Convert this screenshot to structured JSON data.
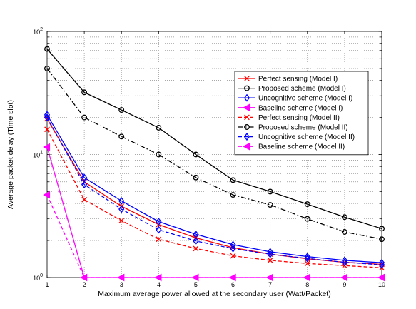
{
  "chart_data": {
    "type": "line",
    "title": "",
    "xlabel": "Maximum average power allowed at the secondary user (Watt/Packet)",
    "ylabel": "Average packet delay (Time slot)",
    "x_scale": "linear",
    "y_scale": "log",
    "xlim": [
      1,
      10
    ],
    "ylim": [
      1,
      100
    ],
    "grid": true,
    "legend_position": "upper-right",
    "x": [
      1,
      2,
      3,
      4,
      5,
      6,
      7,
      8,
      9,
      10
    ],
    "x_ticks": [
      "1",
      "2",
      "3",
      "4",
      "5",
      "6",
      "7",
      "8",
      "9",
      "10"
    ],
    "y_ticks": [
      {
        "value": 1,
        "base": "10",
        "exp": "0"
      },
      {
        "value": 10,
        "base": "10",
        "exp": "1"
      },
      {
        "value": 100,
        "base": "10",
        "exp": "2"
      }
    ],
    "series": [
      {
        "name": "Perfect sensing (Model I)",
        "color": "#ff0000",
        "line": "solid",
        "marker": "x",
        "values": [
          19.5,
          6.0,
          3.8,
          2.7,
          2.1,
          1.75,
          1.55,
          1.42,
          1.33,
          1.28
        ]
      },
      {
        "name": "Proposed scheme (Model I)",
        "color": "#000000",
        "line": "solid",
        "marker": "circle",
        "values": [
          72,
          32,
          23,
          16.5,
          10,
          6.2,
          5.0,
          3.95,
          3.1,
          2.5
        ]
      },
      {
        "name": "Uncognitive scheme (Model I)",
        "color": "#0000ff",
        "line": "solid",
        "marker": "diamond",
        "values": [
          21,
          6.5,
          4.2,
          2.85,
          2.25,
          1.85,
          1.62,
          1.48,
          1.38,
          1.32
        ]
      },
      {
        "name": "Baseline scheme (Model I)",
        "color": "#ff00ff",
        "line": "solid",
        "marker": "triangle-left",
        "values": [
          11.5,
          1.0,
          1.0,
          1.0,
          1.0,
          1.0,
          1.0,
          1.0,
          1.0,
          1.0
        ]
      },
      {
        "name": "Perfect sensing (Model II)",
        "color": "#ff0000",
        "line": "dashed",
        "marker": "x",
        "values": [
          16,
          4.3,
          2.9,
          2.05,
          1.72,
          1.5,
          1.38,
          1.3,
          1.25,
          1.2
        ]
      },
      {
        "name": "Proposed scheme (Model II)",
        "color": "#000000",
        "line": "dashdot",
        "marker": "circle",
        "values": [
          50,
          20,
          14,
          10,
          6.5,
          4.7,
          3.9,
          3.0,
          2.35,
          2.05
        ]
      },
      {
        "name": "Uncognitive scheme (Model II)",
        "color": "#0000ff",
        "line": "dashed",
        "marker": "diamond",
        "values": [
          20,
          5.7,
          3.6,
          2.45,
          1.98,
          1.72,
          1.55,
          1.43,
          1.33,
          1.27
        ]
      },
      {
        "name": "Baseline scheme (Model II)",
        "color": "#ff00ff",
        "line": "dashed",
        "marker": "triangle-left",
        "values": [
          4.7,
          1.0,
          1.0,
          1.0,
          1.0,
          1.0,
          1.0,
          1.0,
          1.0,
          1.0
        ]
      }
    ]
  }
}
